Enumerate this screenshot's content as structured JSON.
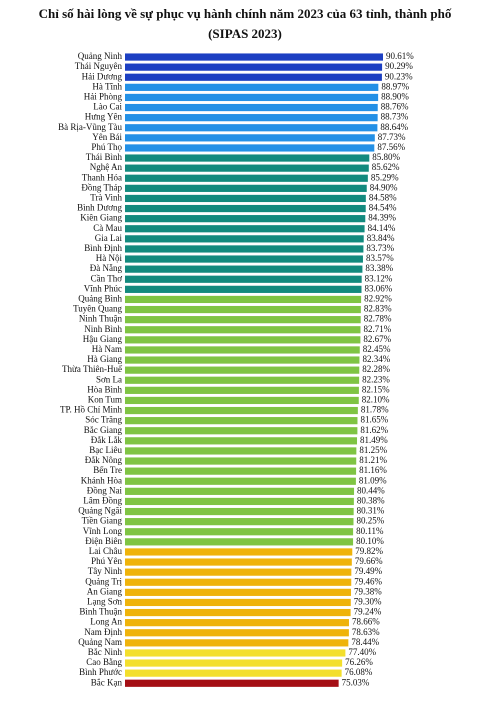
{
  "chart_data": {
    "type": "barh",
    "title": "Chỉ số hài lòng về sự phục vụ hành chính năm 2023 của 63 tỉnh, thành phố",
    "subtitle": "(SIPAS 2023)",
    "categories": [
      "Quảng Ninh",
      "Thái Nguyên",
      "Hải Dương",
      "Hà Tĩnh",
      "Hải Phòng",
      "Lào Cai",
      "Hưng Yên",
      "Bà Rịa-Vũng Tàu",
      "Yên Bái",
      "Phú Thọ",
      "Thái Bình",
      "Nghệ An",
      "Thanh Hóa",
      "Đồng Tháp",
      "Trà Vinh",
      "Bình Dương",
      "Kiên Giang",
      "Cà Mau",
      "Gia Lai",
      "Bình Định",
      "Hà Nội",
      "Đà Nẵng",
      "Cần Thơ",
      "Vĩnh Phúc",
      "Quảng Bình",
      "Tuyên Quang",
      "Ninh Thuận",
      "Ninh Bình",
      "Hậu Giang",
      "Hà Nam",
      "Hà Giang",
      "Thừa Thiên-Huế",
      "Sơn La",
      "Hòa Bình",
      "Kon Tum",
      "TP. Hồ Chí Minh",
      "Sóc Trăng",
      "Bắc Giang",
      "Đắk Lắk",
      "Bạc Liêu",
      "Đắk Nông",
      "Bến Tre",
      "Khánh Hòa",
      "Đồng Nai",
      "Lâm Đồng",
      "Quảng Ngãi",
      "Tiền Giang",
      "Vĩnh Long",
      "Điện Biên",
      "Lai Châu",
      "Phú Yên",
      "Tây Ninh",
      "Quảng Trị",
      "An Giang",
      "Lạng Sơn",
      "Bình Thuận",
      "Long An",
      "Nam Định",
      "Quảng Nam",
      "Bắc Ninh",
      "Cao Bằng",
      "Bình Phước",
      "Bắc Kạn"
    ],
    "values": [
      90.61,
      90.29,
      90.23,
      88.97,
      88.9,
      88.76,
      88.73,
      88.64,
      87.73,
      87.56,
      85.8,
      85.62,
      85.29,
      84.9,
      84.58,
      84.54,
      84.39,
      84.14,
      83.84,
      83.73,
      83.57,
      83.38,
      83.12,
      83.06,
      82.92,
      82.83,
      82.78,
      82.71,
      82.67,
      82.45,
      82.34,
      82.28,
      82.23,
      82.15,
      82.1,
      81.78,
      81.65,
      81.62,
      81.49,
      81.25,
      81.21,
      81.16,
      81.09,
      80.44,
      80.38,
      80.31,
      80.25,
      80.11,
      80.1,
      79.82,
      79.66,
      79.49,
      79.46,
      79.38,
      79.3,
      79.24,
      78.66,
      78.63,
      78.44,
      77.4,
      76.26,
      76.08,
      75.03
    ],
    "value_labels": [
      "90.61%",
      "90.29%",
      "90.23%",
      "88.97%",
      "88.90%",
      "88.76%",
      "88.73%",
      "88.64%",
      "87.73%",
      "87.56%",
      "85.80%",
      "85.62%",
      "85.29%",
      "84.90%",
      "84.58%",
      "84.54%",
      "84.39%",
      "84.14%",
      "83.84%",
      "83.73%",
      "83.57%",
      "83.38%",
      "83.12%",
      "83.06%",
      "82.92%",
      "82.83%",
      "82.78%",
      "82.71%",
      "82.67%",
      "82.45%",
      "82.34%",
      "82.28%",
      "82.23%",
      "82.15%",
      "82.10%",
      "81.78%",
      "81.65%",
      "81.62%",
      "81.49%",
      "81.25%",
      "81.21%",
      "81.16%",
      "81.09%",
      "80.44%",
      "80.38%",
      "80.31%",
      "80.25%",
      "80.11%",
      "80.10%",
      "79.82%",
      "79.66%",
      "79.49%",
      "79.46%",
      "79.38%",
      "79.30%",
      "79.24%",
      "78.66%",
      "78.63%",
      "78.44%",
      "77.40%",
      "76.26%",
      "76.08%",
      "75.03%"
    ],
    "colors": [
      "#1c3fc2",
      "#1c3fc2",
      "#1c3fc2",
      "#2390e6",
      "#2390e6",
      "#2390e6",
      "#2390e6",
      "#2390e6",
      "#2390e6",
      "#2390e6",
      "#138a7e",
      "#138a7e",
      "#138a7e",
      "#138a7e",
      "#138a7e",
      "#138a7e",
      "#138a7e",
      "#138a7e",
      "#138a7e",
      "#138a7e",
      "#138a7e",
      "#138a7e",
      "#138a7e",
      "#138a7e",
      "#7fc443",
      "#7fc443",
      "#7fc443",
      "#7fc443",
      "#7fc443",
      "#7fc443",
      "#7fc443",
      "#7fc443",
      "#7fc443",
      "#7fc443",
      "#7fc443",
      "#7fc443",
      "#7fc443",
      "#7fc443",
      "#7fc443",
      "#7fc443",
      "#7fc443",
      "#7fc443",
      "#7fc443",
      "#7fc443",
      "#7fc443",
      "#7fc443",
      "#7fc443",
      "#7fc443",
      "#7fc443",
      "#efb30a",
      "#efb30a",
      "#efb30a",
      "#efb30a",
      "#efb30a",
      "#efb30a",
      "#efb30a",
      "#efb30a",
      "#efb30a",
      "#efb30a",
      "#f3df2c",
      "#f3df2c",
      "#f3df2c",
      "#a50f15"
    ]
  }
}
